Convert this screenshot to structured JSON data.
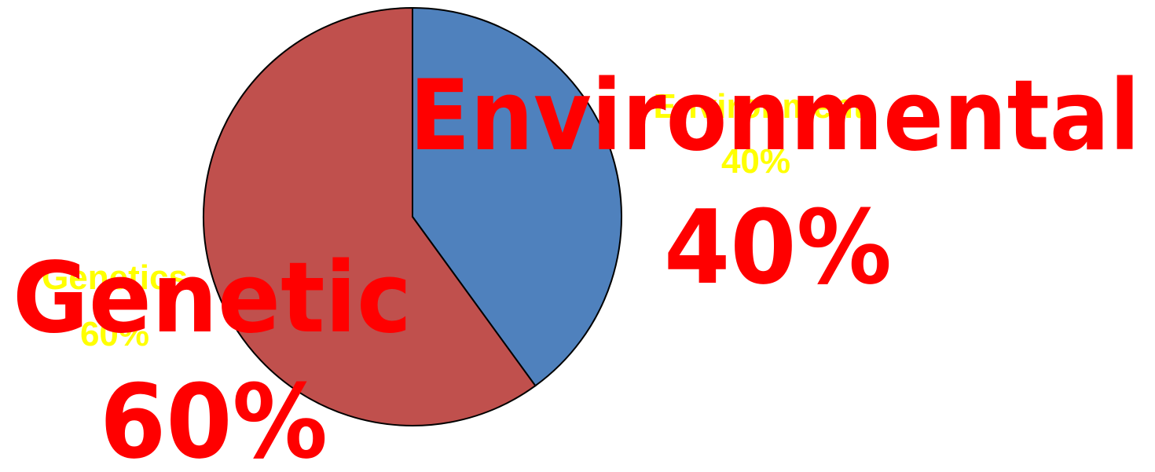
{
  "chart_data": {
    "type": "pie",
    "slices": [
      {
        "label": "Environment",
        "value": 40,
        "value_label": "40%",
        "color": "#4F81BD"
      },
      {
        "label": "Genetics",
        "value": 60,
        "value_label": "60%",
        "color": "#C0504D"
      }
    ],
    "start_angle": "12 o'clock",
    "direction": "clockwise",
    "slice_label_color": "#FFFF00",
    "outline_color": "#000000"
  },
  "overlay_annotations": {
    "color": "#FF0000",
    "environmental": {
      "label": "Environmental",
      "value": "40%"
    },
    "genetic": {
      "label": "Genetic",
      "value": "60%"
    }
  }
}
